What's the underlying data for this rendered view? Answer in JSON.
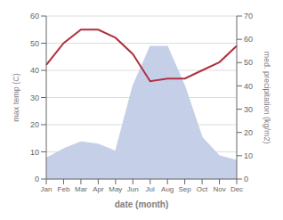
{
  "chart_data": {
    "type": "line",
    "xlabel": "date (month)",
    "ylabel": "max temp (C)",
    "y2label": "med. precipitation (kg/m2)",
    "categories": [
      "Jan",
      "Feb",
      "Mar",
      "Apr",
      "May",
      "Jun",
      "Jul",
      "Aug",
      "Sep",
      "Oct",
      "Nov",
      "Dec"
    ],
    "series": [
      {
        "type": "area",
        "color": "#c5d0e8",
        "axis": "y2",
        "values": [
          9,
          13,
          16,
          15,
          12,
          40,
          57,
          57,
          40,
          18,
          10,
          8
        ]
      },
      {
        "type": "line",
        "color": "#b03040",
        "values": [
          42,
          50,
          55,
          55,
          52,
          46,
          36,
          37,
          37,
          40,
          43,
          49
        ]
      }
    ],
    "ylim": [
      0,
      60
    ],
    "yticks": [
      0,
      10,
      20,
      30,
      40,
      50,
      60
    ],
    "y2lim": [
      0,
      70
    ],
    "y2ticks": [
      0,
      10,
      20,
      30,
      40,
      50,
      60,
      70
    ],
    "grid": true
  }
}
